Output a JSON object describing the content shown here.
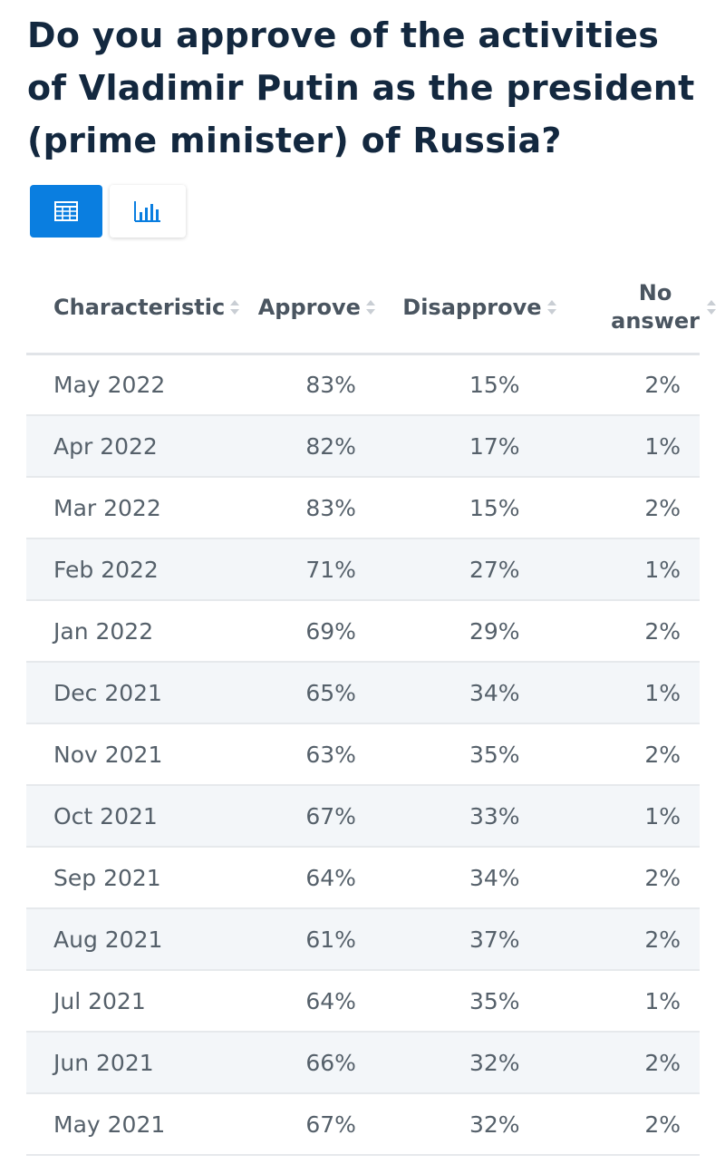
{
  "title": "Do you approve of the activities of Vladimir Putin as the president (prime minister) of Russia?",
  "view_toggle": {
    "table_icon": "table-grid-icon",
    "chart_icon": "bar-chart-icon",
    "active": "table",
    "accent_color": "#0a7ee0"
  },
  "table": {
    "headers": {
      "characteristic": "Characteristic",
      "approve": "Approve",
      "disapprove": "Disapprove",
      "no_answer": "No answer",
      "no_answer_line1": "No",
      "no_answer_line2": "answer"
    },
    "rows": [
      {
        "characteristic": "May 2022",
        "approve": "83%",
        "disapprove": "15%",
        "no_answer": "2%"
      },
      {
        "characteristic": "Apr 2022",
        "approve": "82%",
        "disapprove": "17%",
        "no_answer": "1%"
      },
      {
        "characteristic": "Mar 2022",
        "approve": "83%",
        "disapprove": "15%",
        "no_answer": "2%"
      },
      {
        "characteristic": "Feb 2022",
        "approve": "71%",
        "disapprove": "27%",
        "no_answer": "1%"
      },
      {
        "characteristic": "Jan 2022",
        "approve": "69%",
        "disapprove": "29%",
        "no_answer": "2%"
      },
      {
        "characteristic": "Dec 2021",
        "approve": "65%",
        "disapprove": "34%",
        "no_answer": "1%"
      },
      {
        "characteristic": "Nov 2021",
        "approve": "63%",
        "disapprove": "35%",
        "no_answer": "2%"
      },
      {
        "characteristic": "Oct 2021",
        "approve": "67%",
        "disapprove": "33%",
        "no_answer": "1%"
      },
      {
        "characteristic": "Sep 2021",
        "approve": "64%",
        "disapprove": "34%",
        "no_answer": "2%"
      },
      {
        "characteristic": "Aug 2021",
        "approve": "61%",
        "disapprove": "37%",
        "no_answer": "2%"
      },
      {
        "characteristic": "Jul 2021",
        "approve": "64%",
        "disapprove": "35%",
        "no_answer": "1%"
      },
      {
        "characteristic": "Jun 2021",
        "approve": "66%",
        "disapprove": "32%",
        "no_answer": "2%"
      },
      {
        "characteristic": "May 2021",
        "approve": "67%",
        "disapprove": "32%",
        "no_answer": "2%"
      }
    ]
  }
}
